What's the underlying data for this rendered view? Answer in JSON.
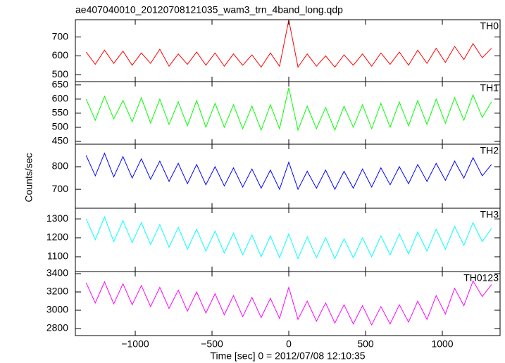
{
  "chart_data": [
    {
      "type": "line",
      "title": "ae407040010_20120708121035_wam3_trn_4band_long.qdp",
      "x": [
        -1320,
        -1260,
        -1200,
        -1140,
        -1080,
        -1020,
        -960,
        -900,
        -840,
        -780,
        -720,
        -660,
        -600,
        -540,
        -480,
        -420,
        -360,
        -300,
        -240,
        -180,
        -120,
        -60,
        0,
        60,
        120,
        180,
        240,
        300,
        360,
        420,
        480,
        540,
        600,
        660,
        720,
        780,
        840,
        900,
        960,
        1020,
        1080,
        1140,
        1200,
        1260,
        1320
      ],
      "series": [
        {
          "name": "TH0",
          "color": "#ff0000",
          "values": [
            620,
            555,
            630,
            560,
            625,
            550,
            615,
            560,
            635,
            545,
            610,
            555,
            620,
            550,
            615,
            545,
            610,
            550,
            605,
            540,
            615,
            545,
            790,
            540,
            610,
            545,
            600,
            540,
            605,
            550,
            610,
            545,
            615,
            555,
            620,
            550,
            630,
            560,
            640,
            565,
            650,
            580,
            665,
            590,
            640
          ]
        }
      ],
      "xlim": [
        -1390,
        1376
      ],
      "xticks": [
        {
          "value": -1000,
          "label": "−1000"
        },
        {
          "value": -500,
          "label": "−500"
        },
        0,
        500,
        1000
      ],
      "ylim": [
        463,
        792
      ],
      "yticks": [
        500,
        600,
        700
      ]
    },
    {
      "type": "line",
      "x": [
        -1320,
        -1260,
        -1200,
        -1140,
        -1080,
        -1020,
        -960,
        -900,
        -840,
        -780,
        -720,
        -660,
        -600,
        -540,
        -480,
        -420,
        -360,
        -300,
        -240,
        -180,
        -120,
        -60,
        0,
        60,
        120,
        180,
        240,
        300,
        360,
        420,
        480,
        540,
        600,
        660,
        720,
        780,
        840,
        900,
        960,
        1020,
        1080,
        1140,
        1200,
        1260,
        1320
      ],
      "series": [
        {
          "name": "TH1",
          "color": "#00ff00",
          "values": [
            600,
            525,
            610,
            530,
            595,
            520,
            605,
            515,
            600,
            510,
            590,
            505,
            595,
            500,
            585,
            500,
            580,
            495,
            575,
            490,
            580,
            495,
            640,
            490,
            575,
            495,
            570,
            490,
            575,
            500,
            580,
            495,
            585,
            500,
            590,
            505,
            595,
            510,
            600,
            515,
            605,
            525,
            615,
            535,
            590
          ]
        }
      ],
      "xlim": [
        -1390,
        1376
      ],
      "xticks": [
        {
          "value": -1000,
          "label": "−1000"
        },
        {
          "value": -500,
          "label": "−500"
        },
        0,
        500,
        1000
      ],
      "ylim": [
        440,
        662
      ],
      "yticks": [
        450,
        500,
        550,
        600,
        650
      ]
    },
    {
      "type": "line",
      "y_label": "Counts/sec",
      "x": [
        -1320,
        -1260,
        -1200,
        -1140,
        -1080,
        -1020,
        -960,
        -900,
        -840,
        -780,
        -720,
        -660,
        -600,
        -540,
        -480,
        -420,
        -360,
        -300,
        -240,
        -180,
        -120,
        -60,
        0,
        60,
        120,
        180,
        240,
        300,
        360,
        420,
        480,
        540,
        600,
        660,
        720,
        780,
        840,
        900,
        960,
        1020,
        1080,
        1140,
        1200,
        1260,
        1320
      ],
      "series": [
        {
          "name": "TH2",
          "color": "#0000ff",
          "values": [
            850,
            760,
            860,
            755,
            845,
            750,
            835,
            745,
            825,
            735,
            815,
            725,
            810,
            720,
            800,
            715,
            795,
            710,
            790,
            705,
            785,
            700,
            820,
            700,
            780,
            705,
            785,
            700,
            780,
            705,
            790,
            710,
            795,
            720,
            800,
            725,
            810,
            735,
            815,
            740,
            825,
            750,
            840,
            760,
            810
          ]
        }
      ],
      "xlim": [
        -1390,
        1376
      ],
      "xticks": [
        {
          "value": -1000,
          "label": "−1000"
        },
        {
          "value": -500,
          "label": "−500"
        },
        0,
        500,
        1000
      ],
      "ylim": [
        616,
        900
      ],
      "yticks": [
        700,
        800
      ]
    },
    {
      "type": "line",
      "x": [
        -1320,
        -1260,
        -1200,
        -1140,
        -1080,
        -1020,
        -960,
        -900,
        -840,
        -780,
        -720,
        -660,
        -600,
        -540,
        -480,
        -420,
        -360,
        -300,
        -240,
        -180,
        -120,
        -60,
        0,
        60,
        120,
        180,
        240,
        300,
        360,
        420,
        480,
        540,
        600,
        660,
        720,
        780,
        840,
        900,
        960,
        1020,
        1080,
        1140,
        1200,
        1260,
        1320
      ],
      "series": [
        {
          "name": "TH3",
          "color": "#00ffff",
          "values": [
            1300,
            1190,
            1310,
            1180,
            1290,
            1175,
            1280,
            1165,
            1270,
            1150,
            1255,
            1140,
            1245,
            1130,
            1235,
            1120,
            1225,
            1110,
            1215,
            1100,
            1210,
            1095,
            1220,
            1090,
            1205,
            1095,
            1200,
            1090,
            1195,
            1095,
            1200,
            1100,
            1210,
            1110,
            1220,
            1115,
            1230,
            1130,
            1245,
            1140,
            1260,
            1160,
            1280,
            1180,
            1250
          ]
        }
      ],
      "xlim": [
        -1390,
        1376
      ],
      "xticks": [
        {
          "value": -1000,
          "label": "−1000"
        },
        {
          "value": -500,
          "label": "−500"
        },
        0,
        500,
        1000
      ],
      "ylim": [
        1022,
        1356
      ],
      "yticks": [
        1100,
        1200,
        1300
      ]
    },
    {
      "type": "line",
      "x_label": "Time [sec] 0 = 2012/07/08 12:10:35",
      "x": [
        -1320,
        -1260,
        -1200,
        -1140,
        -1080,
        -1020,
        -960,
        -900,
        -840,
        -780,
        -720,
        -660,
        -600,
        -540,
        -480,
        -420,
        -360,
        -300,
        -240,
        -180,
        -120,
        -60,
        0,
        60,
        120,
        180,
        240,
        300,
        360,
        420,
        480,
        540,
        600,
        660,
        720,
        780,
        840,
        900,
        960,
        1020,
        1080,
        1140,
        1200,
        1260,
        1320
      ],
      "series": [
        {
          "name": "TH0123",
          "color": "#ff00ff",
          "values": [
            3300,
            3080,
            3310,
            3070,
            3290,
            3060,
            3270,
            3040,
            3250,
            3020,
            3220,
            2990,
            3200,
            2970,
            3180,
            2950,
            3160,
            2930,
            3140,
            2920,
            3130,
            2910,
            3250,
            2900,
            3100,
            2880,
            3080,
            2860,
            3060,
            2850,
            3050,
            2840,
            3040,
            2850,
            3060,
            2870,
            3100,
            2900,
            3160,
            2960,
            3240,
            3050,
            3320,
            3150,
            3280
          ]
        }
      ],
      "xlim": [
        -1390,
        1376
      ],
      "xticks": [
        {
          "value": -1000,
          "label": "−1000"
        },
        {
          "value": -500,
          "label": "−500"
        },
        0,
        500,
        1000
      ],
      "ylim": [
        2723,
        3423
      ],
      "yticks": [
        2800,
        3000,
        3200,
        3400
      ]
    }
  ]
}
